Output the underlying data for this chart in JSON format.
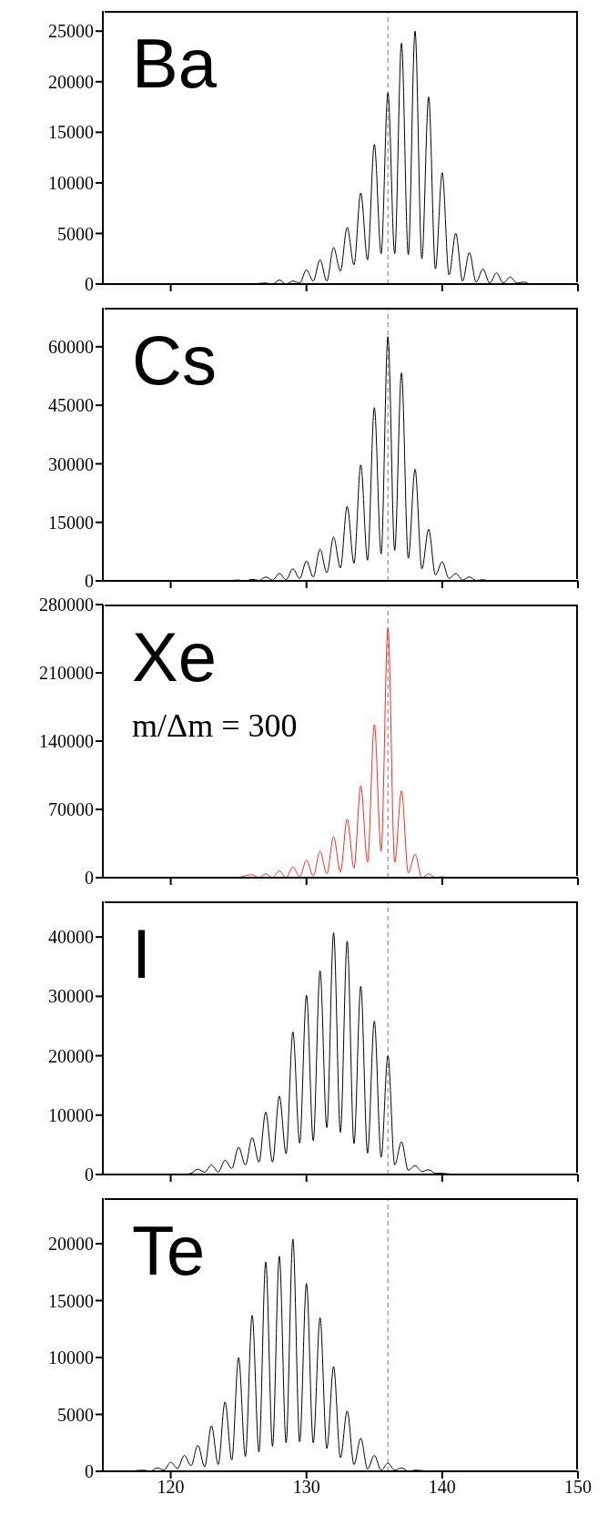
{
  "chart_data": [
    {
      "type": "line",
      "annotations": [
        "Ba"
      ],
      "color": "#000000",
      "xlim": [
        115,
        150
      ],
      "xticks": [
        120,
        130,
        140,
        150
      ],
      "ylim": [
        0,
        27000
      ],
      "yticks": [
        0,
        5000,
        10000,
        15000,
        20000,
        25000
      ],
      "tick_labels": "y",
      "ref_lines": [
        {
          "axis": "x",
          "value": 136,
          "color": "#777777",
          "line_style": "dashed"
        }
      ],
      "x": [
        126,
        127,
        127.5,
        128,
        128.5,
        129,
        129.5,
        130,
        130.5,
        131,
        131.5,
        132,
        132.5,
        133,
        133.5,
        134,
        134.5,
        135,
        135.5,
        136,
        136.5,
        137,
        137.5,
        138,
        138.5,
        139,
        139.5,
        140,
        140.5,
        141,
        141.5,
        142,
        142.5,
        143,
        143.5,
        144,
        144.5,
        145,
        145.5,
        146,
        146.5,
        147,
        148
      ],
      "values": [
        0,
        100,
        0,
        400,
        0,
        300,
        100,
        1400,
        300,
        2400,
        300,
        3600,
        1300,
        5600,
        1900,
        9000,
        2400,
        13800,
        3000,
        18900,
        3000,
        23800,
        2900,
        25000,
        2500,
        18500,
        1500,
        11000,
        900,
        5000,
        300,
        3100,
        200,
        1500,
        100,
        1100,
        100,
        700,
        100,
        200,
        0,
        0,
        0
      ]
    },
    {
      "type": "line",
      "annotations": [
        "Cs"
      ],
      "color": "#000000",
      "xlim": [
        115,
        150
      ],
      "xticks": [
        120,
        130,
        140,
        150
      ],
      "ylim": [
        0,
        70000
      ],
      "yticks": [
        0,
        15000,
        30000,
        45000,
        60000
      ],
      "tick_labels": "y",
      "ref_lines": [
        {
          "axis": "x",
          "value": 136,
          "color": "#777777",
          "line_style": "dashed"
        }
      ],
      "x": [
        124,
        125,
        125.5,
        126,
        126.5,
        127,
        127.5,
        128,
        128.5,
        129,
        129.5,
        130,
        130.5,
        131,
        131.5,
        132,
        132.5,
        133,
        133.5,
        134,
        134.5,
        135,
        135.5,
        136,
        136.5,
        137,
        137.5,
        138,
        138.5,
        139,
        139.5,
        140,
        140.5,
        141,
        141.5,
        142,
        142.5,
        143,
        143.5,
        144,
        145
      ],
      "values": [
        0,
        200,
        0,
        400,
        100,
        1000,
        200,
        1900,
        300,
        3100,
        600,
        5100,
        1000,
        8100,
        2100,
        11200,
        3300,
        19100,
        4500,
        29700,
        5300,
        44400,
        6900,
        62600,
        7800,
        53300,
        5800,
        28600,
        3100,
        13200,
        1500,
        4900,
        600,
        1900,
        200,
        1000,
        100,
        300,
        0,
        0,
        0
      ]
    },
    {
      "type": "line",
      "annotations": [
        "Xe",
        "m/Δm = 300"
      ],
      "color": "#ff2a1a",
      "xlim": [
        115,
        150
      ],
      "xticks": [
        120,
        130,
        140,
        150
      ],
      "ylim": [
        0,
        280000
      ],
      "yticks": [
        0,
        70000,
        140000,
        210000,
        280000
      ],
      "tick_labels": "y",
      "ref_lines": [
        {
          "axis": "x",
          "value": 136,
          "color": "#777777",
          "line_style": "dashed"
        }
      ],
      "x": [
        125,
        126,
        126.5,
        127,
        127.5,
        128,
        128.5,
        129,
        129.5,
        130,
        130.5,
        131,
        131.5,
        132,
        132.5,
        133,
        133.5,
        134,
        134.5,
        135,
        135.5,
        136,
        136.5,
        137,
        137.5,
        138,
        138.5,
        139,
        139.5,
        140,
        140.5,
        141
      ],
      "values": [
        0,
        3000,
        0,
        4000,
        0,
        7000,
        0,
        11000,
        1000,
        18000,
        2000,
        27000,
        4000,
        42000,
        6000,
        60000,
        10000,
        94000,
        16000,
        157000,
        27000,
        256000,
        16000,
        89000,
        5000,
        24000,
        0,
        4000,
        0,
        1000,
        0,
        0
      ]
    },
    {
      "type": "line",
      "annotations": [
        "I"
      ],
      "color": "#000000",
      "xlim": [
        115,
        150
      ],
      "xticks": [
        120,
        130,
        140,
        150
      ],
      "ylim": [
        0,
        46000
      ],
      "yticks": [
        0,
        10000,
        20000,
        30000,
        40000
      ],
      "tick_labels": "y",
      "ref_lines": [
        {
          "axis": "x",
          "value": 136,
          "color": "#777777",
          "line_style": "dashed"
        }
      ],
      "x": [
        121,
        121.5,
        122,
        122.5,
        123,
        123.5,
        124,
        124.5,
        125,
        125.5,
        126,
        126.5,
        127,
        127.5,
        128,
        128.5,
        129,
        129.5,
        130,
        130.5,
        131,
        131.5,
        132,
        132.5,
        133,
        133.5,
        134,
        134.5,
        135,
        135.5,
        136,
        136.5,
        137,
        137.5,
        138,
        138.5,
        139,
        139.5,
        140,
        141,
        142
      ],
      "values": [
        0,
        200,
        900,
        400,
        1600,
        400,
        2400,
        1000,
        4600,
        1600,
        6200,
        2100,
        10500,
        2100,
        13200,
        3500,
        24000,
        5300,
        30200,
        5700,
        34300,
        7900,
        40700,
        7100,
        39300,
        5200,
        31700,
        3600,
        25800,
        2900,
        20000,
        1600,
        5500,
        700,
        1500,
        500,
        800,
        200,
        200,
        0,
        0
      ]
    },
    {
      "type": "line",
      "annotations": [
        "Te"
      ],
      "color": "#000000",
      "xlim": [
        115,
        150
      ],
      "xticks": [
        120,
        130,
        140,
        150
      ],
      "ylim": [
        0,
        24000
      ],
      "yticks": [
        0,
        5000,
        10000,
        15000,
        20000
      ],
      "ref_lines": [
        {
          "axis": "x",
          "value": 136,
          "color": "#777777",
          "line_style": "dashed"
        }
      ],
      "x": [
        117,
        118,
        118.5,
        119,
        119.5,
        120,
        120.5,
        121,
        121.5,
        122,
        122.5,
        123,
        123.5,
        124,
        124.5,
        125,
        125.5,
        126,
        126.5,
        127,
        127.5,
        128,
        128.5,
        129,
        129.5,
        130,
        130.5,
        131,
        131.5,
        132,
        132.5,
        133,
        133.5,
        134,
        134.5,
        135,
        135.5,
        136,
        136.5,
        137,
        137.5,
        138,
        139
      ],
      "values": [
        0,
        100,
        0,
        300,
        100,
        800,
        250,
        1400,
        500,
        2300,
        400,
        4000,
        600,
        6100,
        1000,
        10000,
        1300,
        13700,
        1700,
        18400,
        2200,
        18900,
        2500,
        20400,
        2600,
        16500,
        2500,
        13500,
        2000,
        9200,
        1200,
        5300,
        600,
        2900,
        200,
        1400,
        100,
        700,
        100,
        300,
        0,
        100,
        0
      ]
    }
  ]
}
